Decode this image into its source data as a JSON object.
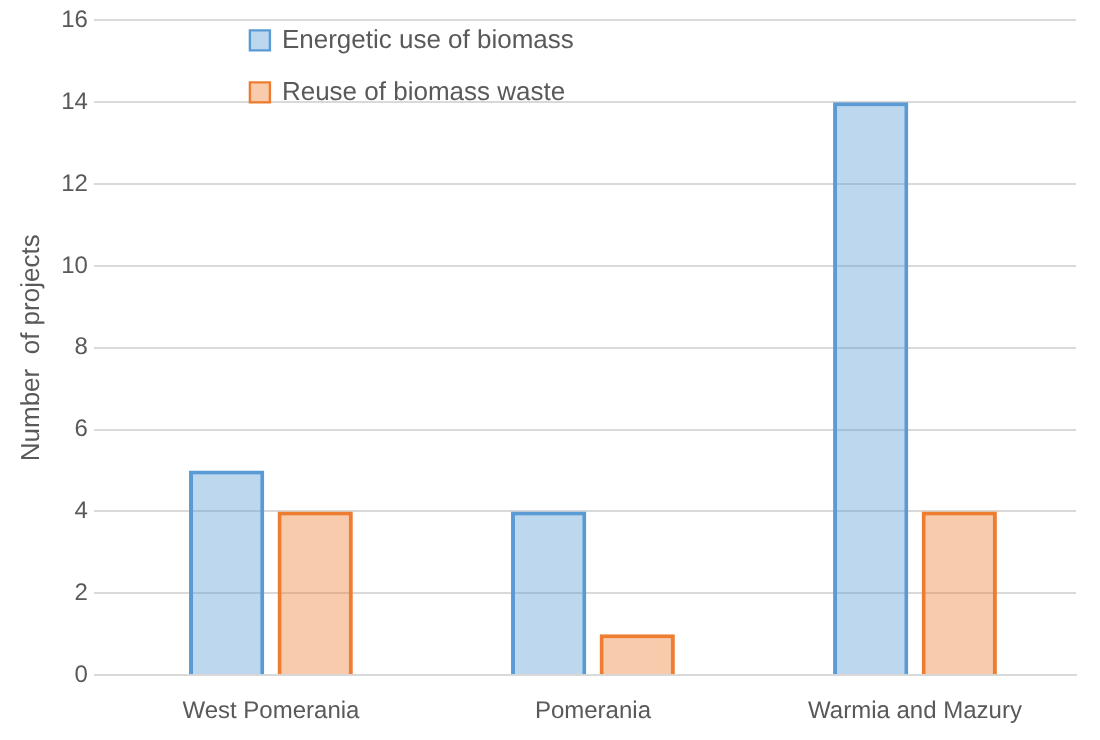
{
  "chart_data": {
    "type": "bar",
    "ylabel": "Number  of projects",
    "categories": [
      "West Pomerania",
      "Pomerania",
      "Warmia and Mazury"
    ],
    "series": [
      {
        "name": "Energetic use of biomass",
        "color": "#5b9bd5",
        "values": [
          5,
          4,
          14
        ]
      },
      {
        "name": "Reuse of biomass waste",
        "color": "#ed7d31",
        "values": [
          4,
          1,
          4
        ]
      }
    ],
    "ylim": [
      0,
      16
    ],
    "yticks": [
      0,
      2,
      4,
      6,
      8,
      10,
      12,
      14,
      16
    ],
    "grid": "y",
    "legend": "top left"
  }
}
